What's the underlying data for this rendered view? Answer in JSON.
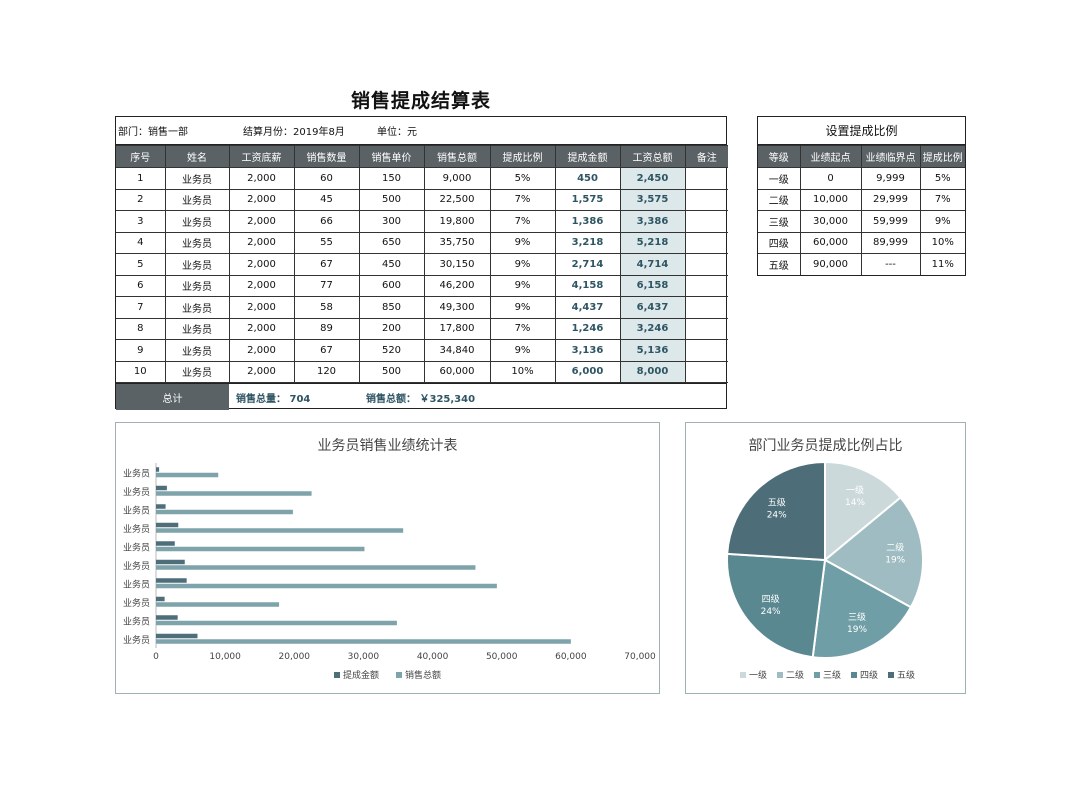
{
  "title": "销售提成结算表",
  "info": {
    "department": "部门：销售一部",
    "month": "结算月份：2019年8月",
    "unit": "单位：元"
  },
  "main_table": {
    "headers": [
      "序号",
      "姓名",
      "工资底薪",
      "销售数量",
      "销售单价",
      "销售总额",
      "提成比例",
      "提成金额",
      "工资总额",
      "备注"
    ],
    "rows": [
      [
        "1",
        "业务员",
        "2,000",
        "60",
        "150",
        "9,000",
        "5%",
        "450",
        "2,450",
        ""
      ],
      [
        "2",
        "业务员",
        "2,000",
        "45",
        "500",
        "22,500",
        "7%",
        "1,575",
        "3,575",
        ""
      ],
      [
        "3",
        "业务员",
        "2,000",
        "66",
        "300",
        "19,800",
        "7%",
        "1,386",
        "3,386",
        ""
      ],
      [
        "4",
        "业务员",
        "2,000",
        "55",
        "650",
        "35,750",
        "9%",
        "3,218",
        "5,218",
        ""
      ],
      [
        "5",
        "业务员",
        "2,000",
        "67",
        "450",
        "30,150",
        "9%",
        "2,714",
        "4,714",
        ""
      ],
      [
        "6",
        "业务员",
        "2,000",
        "77",
        "600",
        "46,200",
        "9%",
        "4,158",
        "6,158",
        ""
      ],
      [
        "7",
        "业务员",
        "2,000",
        "58",
        "850",
        "49,300",
        "9%",
        "4,437",
        "6,437",
        ""
      ],
      [
        "8",
        "业务员",
        "2,000",
        "89",
        "200",
        "17,800",
        "7%",
        "1,246",
        "3,246",
        ""
      ],
      [
        "9",
        "业务员",
        "2,000",
        "67",
        "520",
        "34,840",
        "9%",
        "3,136",
        "5,136",
        ""
      ],
      [
        "10",
        "业务员",
        "2,000",
        "120",
        "500",
        "60,000",
        "10%",
        "6,000",
        "8,000",
        ""
      ]
    ],
    "total_label": "总计",
    "total_qty": "销售总量： 704",
    "total_amount": "销售总额： ￥325,340"
  },
  "side_table": {
    "title": "设置提成比例",
    "headers": [
      "等级",
      "业绩起点",
      "业绩临界点",
      "提成比例"
    ],
    "rows": [
      [
        "一级",
        "0",
        "9,999",
        "5%"
      ],
      [
        "二级",
        "10,000",
        "29,999",
        "7%"
      ],
      [
        "三级",
        "30,000",
        "59,999",
        "9%"
      ],
      [
        "四级",
        "60,000",
        "89,999",
        "10%"
      ],
      [
        "五级",
        "90,000",
        "---",
        "11%"
      ]
    ]
  },
  "chart_data": [
    {
      "type": "bar",
      "orientation": "horizontal",
      "title": "业务员销售业绩统计表",
      "categories": [
        "业务员",
        "业务员",
        "业务员",
        "业务员",
        "业务员",
        "业务员",
        "业务员",
        "业务员",
        "业务员",
        "业务员"
      ],
      "series": [
        {
          "name": "提成金额",
          "values": [
            450,
            1575,
            1386,
            3218,
            2714,
            4158,
            4437,
            1246,
            3136,
            6000
          ],
          "color": "#4e6f7a"
        },
        {
          "name": "销售总额",
          "values": [
            9000,
            22500,
            19800,
            35750,
            30150,
            46200,
            49300,
            17800,
            34840,
            60000
          ],
          "color": "#7fa3aa"
        }
      ],
      "xlim": [
        0,
        70000
      ],
      "xticks": [
        "0",
        "10,000",
        "20,000",
        "30,000",
        "40,000",
        "50,000",
        "60,000",
        "70,000"
      ],
      "legend": "bottom"
    },
    {
      "type": "pie",
      "title": "部门业务员提成比例占比",
      "labels": [
        "一级",
        "二级",
        "三级",
        "四级",
        "五级"
      ],
      "values": [
        14,
        19,
        19,
        24,
        24
      ],
      "value_labels": [
        "14%",
        "19%",
        "19%",
        "24%",
        "24%"
      ],
      "colors": [
        "#ccd9db",
        "#9ebcc1",
        "#6f9ea6",
        "#5a8891",
        "#4d6e78"
      ],
      "legend": "bottom"
    }
  ]
}
